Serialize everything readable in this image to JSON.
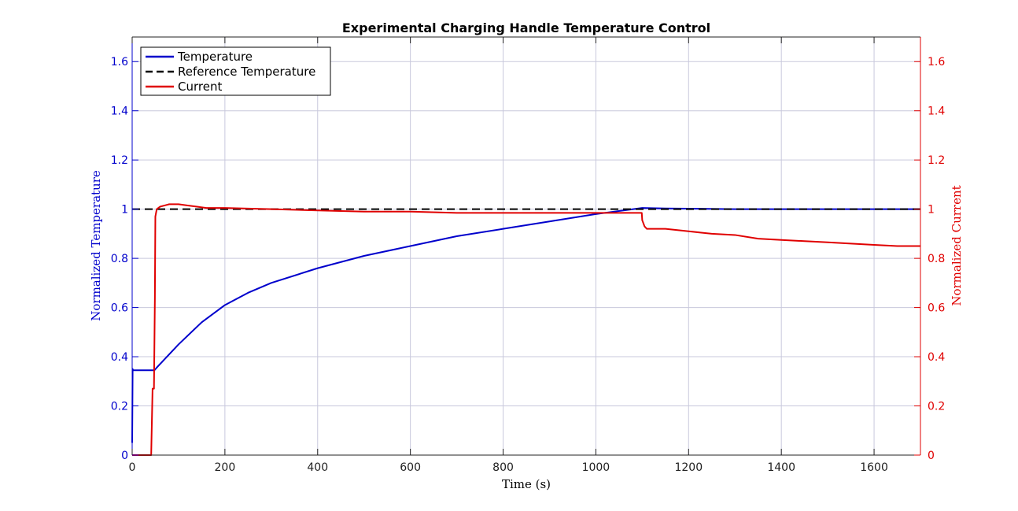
{
  "chart_data": {
    "type": "line",
    "title": "Experimental Charging Handle Temperature Control",
    "xlabel": "Time (s)",
    "ylabel_left": "Normalized Temperature",
    "ylabel_right": "Normalized Current",
    "xlim": [
      0,
      1700
    ],
    "ylim_left": [
      0,
      1.7
    ],
    "ylim_right": [
      0,
      1.7
    ],
    "x_ticks": [
      0,
      200,
      400,
      600,
      800,
      1000,
      1200,
      1400,
      1600
    ],
    "y_ticks": [
      0,
      0.2,
      0.4,
      0.6,
      0.8,
      1,
      1.2,
      1.4,
      1.6
    ],
    "y_tick_labels": [
      "0",
      "0.2",
      "0.4",
      "0.6",
      "0.8",
      "1",
      "1.2",
      "1.4",
      "1.6"
    ],
    "grid": true,
    "legend_position": "top-left",
    "colors": {
      "temperature": "#0000cc",
      "reference": "#000000",
      "current": "#e00000",
      "left_axis": "#0000cc",
      "right_axis": "#e00000",
      "grid": "#c8c8dc"
    },
    "series": [
      {
        "name": "Temperature",
        "axis": "left",
        "style": "solid",
        "x": [
          0,
          1,
          2,
          5,
          48,
          55,
          70,
          100,
          150,
          200,
          250,
          300,
          400,
          500,
          600,
          700,
          800,
          900,
          1000,
          1100,
          1150,
          1200,
          1300,
          1400,
          1500,
          1600,
          1700
        ],
        "y": [
          0.05,
          0.35,
          0.345,
          0.345,
          0.345,
          0.36,
          0.39,
          0.45,
          0.54,
          0.61,
          0.66,
          0.7,
          0.76,
          0.81,
          0.85,
          0.89,
          0.92,
          0.95,
          0.98,
          1.005,
          1.003,
          1.002,
          1.0,
          1.0,
          1.0,
          1.0,
          1.0
        ]
      },
      {
        "name": "Reference Temperature",
        "axis": "left",
        "style": "dashed",
        "x": [
          0,
          1700
        ],
        "y": [
          1.0,
          1.0
        ]
      },
      {
        "name": "Current",
        "axis": "right",
        "style": "solid",
        "x": [
          0,
          41,
          44,
          47,
          49,
          50,
          53,
          60,
          70,
          80,
          100,
          120,
          140,
          160,
          200,
          300,
          400,
          500,
          600,
          700,
          800,
          900,
          1000,
          1050,
          1099,
          1100,
          1105,
          1110,
          1150,
          1200,
          1250,
          1300,
          1350,
          1400,
          1450,
          1500,
          1550,
          1600,
          1650,
          1700
        ],
        "y": [
          0,
          0,
          0.27,
          0.27,
          0.64,
          0.97,
          1.0,
          1.01,
          1.015,
          1.02,
          1.02,
          1.015,
          1.01,
          1.005,
          1.005,
          1.0,
          0.995,
          0.99,
          0.99,
          0.985,
          0.985,
          0.985,
          0.985,
          0.985,
          0.985,
          0.955,
          0.93,
          0.92,
          0.92,
          0.91,
          0.9,
          0.895,
          0.88,
          0.875,
          0.87,
          0.865,
          0.86,
          0.855,
          0.85,
          0.85
        ]
      }
    ]
  }
}
